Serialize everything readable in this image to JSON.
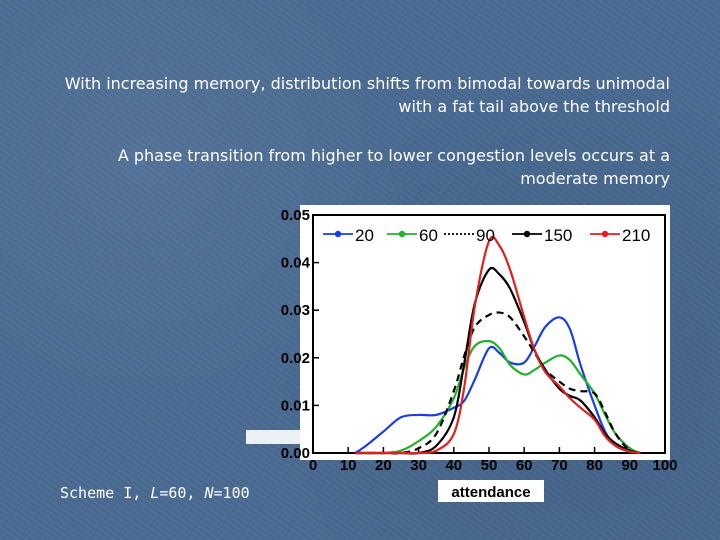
{
  "slide": {
    "paragraph_1": "With increasing memory, distribution shifts from bimodal towards unimodal with a fat tail above the threshold",
    "paragraph_2": "A phase transition from higher to lower congestion levels occurs at a moderate memory",
    "caption": {
      "prefix": "Scheme I, ",
      "L_symbol": "L",
      "L_value": "=60, ",
      "N_symbol": "N",
      "N_value": "=100"
    }
  },
  "chart_data": {
    "type": "line",
    "xlabel": "attendance",
    "ylabel": "",
    "xlim": [
      0,
      100
    ],
    "ylim": [
      0,
      0.05
    ],
    "x_ticks": [
      "0",
      "10",
      "20",
      "30",
      "40",
      "50",
      "60",
      "70",
      "80",
      "90",
      "100"
    ],
    "y_ticks": [
      "0.00",
      "0.01",
      "0.02",
      "0.03",
      "0.04",
      "0.05"
    ],
    "y_tick_values": [
      0,
      0.01,
      0.02,
      0.03,
      0.04,
      0.05
    ],
    "legend_position": "top",
    "grid": false,
    "x": [
      12,
      15,
      20,
      25,
      30,
      35,
      40,
      43,
      46,
      50,
      53,
      56,
      60,
      63,
      66,
      70,
      73,
      76,
      80,
      83,
      86,
      90,
      93
    ],
    "series": [
      {
        "name": "20",
        "color": "#1a3ee0",
        "dash": "solid",
        "marker": "circle",
        "values": [
          0.0,
          0.0015,
          0.0045,
          0.0075,
          0.008,
          0.008,
          0.0095,
          0.011,
          0.0155,
          0.022,
          0.021,
          0.019,
          0.019,
          0.0225,
          0.0265,
          0.0285,
          0.026,
          0.0185,
          0.01,
          0.0045,
          0.0015,
          0.0003,
          0.0
        ]
      },
      {
        "name": "60",
        "color": "#22b02c",
        "dash": "solid",
        "marker": "circle",
        "values": [
          0.0,
          0.0,
          0.0,
          0.0005,
          0.0025,
          0.0055,
          0.0115,
          0.018,
          0.0225,
          0.0235,
          0.022,
          0.0185,
          0.0165,
          0.0175,
          0.019,
          0.0205,
          0.0195,
          0.0165,
          0.0125,
          0.008,
          0.004,
          0.001,
          0.0
        ]
      },
      {
        "name": "90",
        "color": "#000000",
        "dash": "dashed",
        "marker": "none",
        "values": [
          0.0,
          0.0,
          0.0,
          0.0,
          0.001,
          0.004,
          0.013,
          0.0205,
          0.0265,
          0.029,
          0.0295,
          0.0285,
          0.0245,
          0.021,
          0.0175,
          0.015,
          0.0135,
          0.013,
          0.0125,
          0.0085,
          0.004,
          0.0005,
          0.0
        ]
      },
      {
        "name": "150",
        "color": "#000000",
        "dash": "solid",
        "marker": "circle",
        "values": [
          0.0,
          0.0,
          0.0,
          0.0,
          0.0,
          0.0015,
          0.0075,
          0.019,
          0.0315,
          0.0385,
          0.0375,
          0.0345,
          0.0275,
          0.0215,
          0.0175,
          0.0135,
          0.012,
          0.011,
          0.0075,
          0.004,
          0.002,
          0.0005,
          0.0
        ]
      },
      {
        "name": "210",
        "color": "#e02020",
        "dash": "solid",
        "marker": "circle",
        "values": [
          0.0,
          0.0,
          0.0,
          0.0,
          0.0,
          0.0005,
          0.004,
          0.014,
          0.031,
          0.0445,
          0.0435,
          0.0385,
          0.0285,
          0.0215,
          0.017,
          0.014,
          0.0115,
          0.0095,
          0.007,
          0.0035,
          0.0015,
          0.0003,
          0.0
        ]
      }
    ]
  }
}
